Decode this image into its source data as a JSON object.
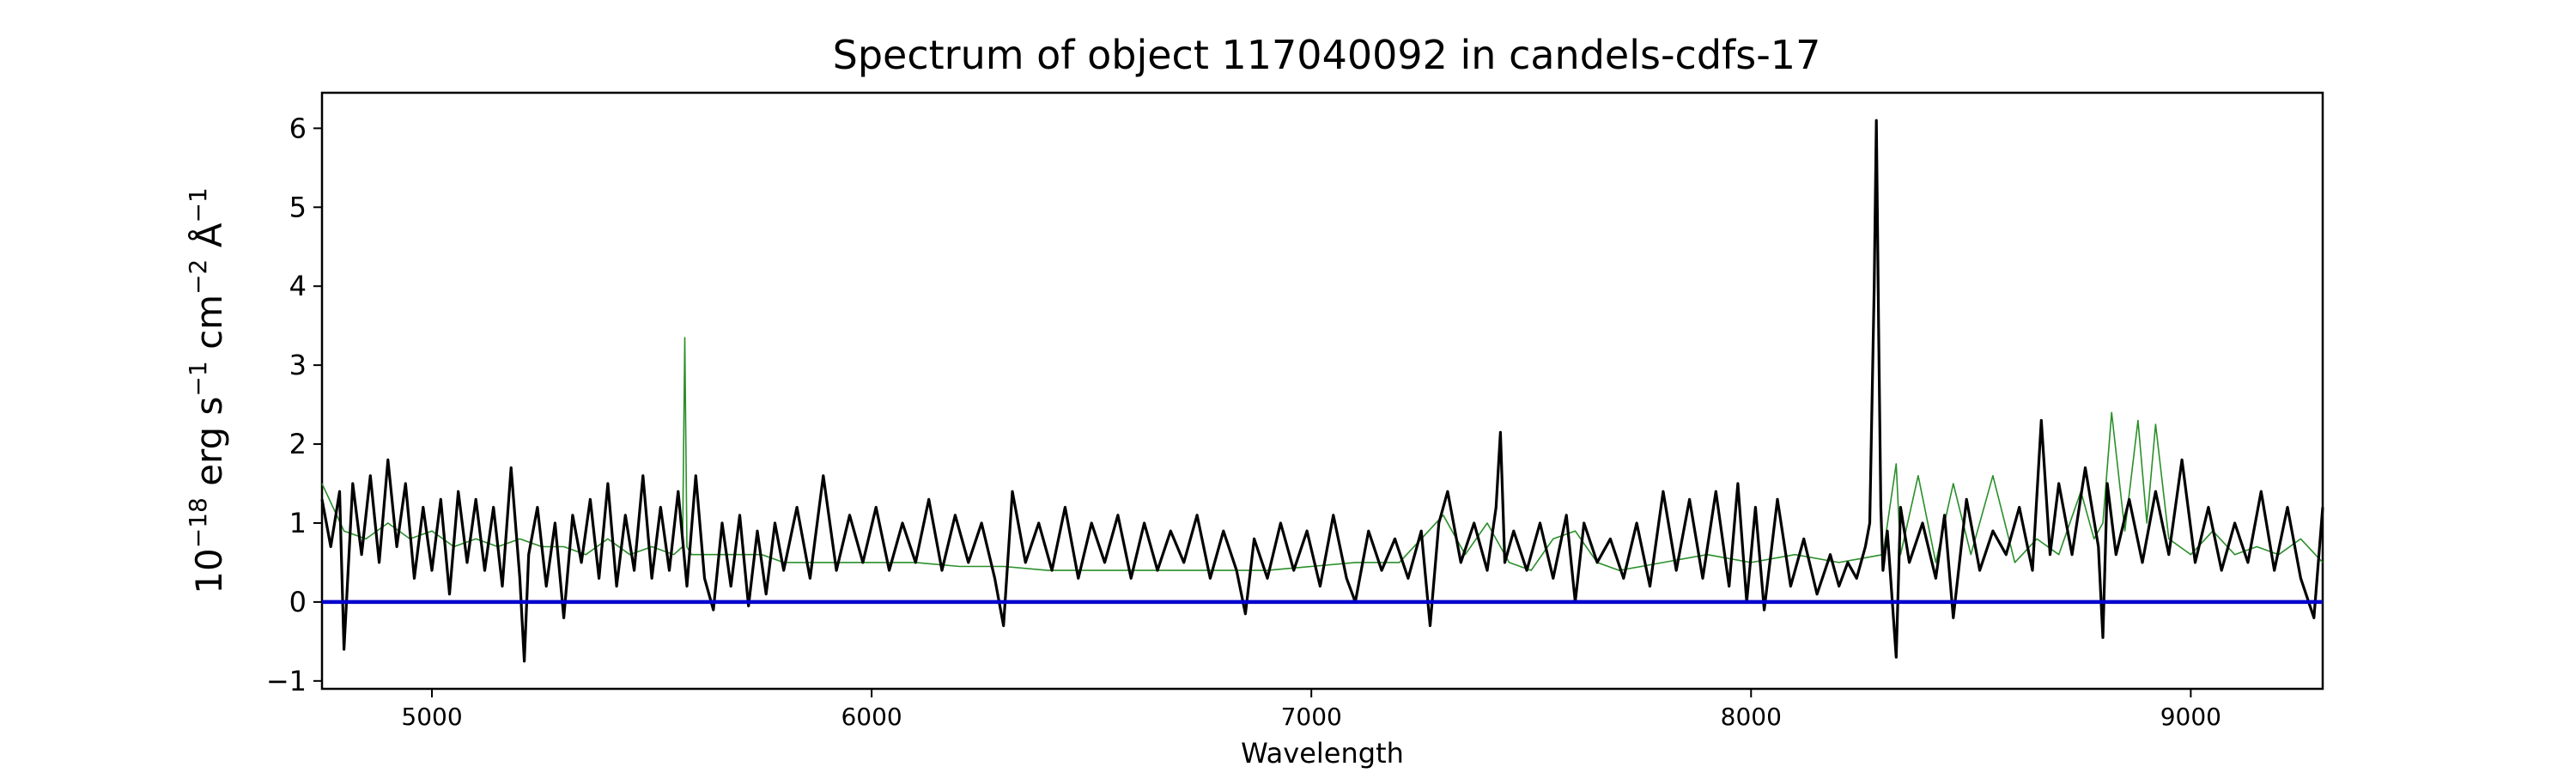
{
  "chart_data": {
    "type": "line",
    "title": "Spectrum of object 117040092 in candels-cdfs-17",
    "xlabel": "Wavelength",
    "ylabel": {
      "base": "10",
      "base_exp": "−18",
      "erg": " erg s",
      "s_exp": "−1",
      "cm": " cm",
      "cm_exp": "−2",
      "ang": " Å",
      "ang_exp": "−1"
    },
    "xlim": [
      4750,
      9300
    ],
    "ylim": [
      -1.1,
      6.45
    ],
    "xticks": [
      5000,
      6000,
      7000,
      8000,
      9000
    ],
    "yticks": [
      -1,
      0,
      1,
      2,
      3,
      4,
      5,
      6
    ],
    "ytick_labels": [
      "−1",
      "0",
      "1",
      "2",
      "3",
      "4",
      "5",
      "6"
    ],
    "grid": false,
    "colors": {
      "flux": "#000000",
      "error": "#2a8f2a",
      "zero": "#0000cc"
    },
    "series": [
      {
        "role": "flux",
        "x": [
          4750,
          4770,
          4790,
          4800,
          4820,
          4840,
          4860,
          4880,
          4900,
          4920,
          4940,
          4960,
          4980,
          5000,
          5020,
          5040,
          5060,
          5080,
          5100,
          5120,
          5140,
          5160,
          5180,
          5200,
          5210,
          5220,
          5240,
          5260,
          5280,
          5300,
          5320,
          5340,
          5360,
          5380,
          5400,
          5420,
          5440,
          5460,
          5480,
          5500,
          5520,
          5540,
          5560,
          5580,
          5600,
          5620,
          5640,
          5660,
          5680,
          5700,
          5720,
          5740,
          5760,
          5780,
          5800,
          5830,
          5860,
          5890,
          5920,
          5950,
          5980,
          6010,
          6040,
          6070,
          6100,
          6130,
          6160,
          6190,
          6220,
          6250,
          6280,
          6300,
          6320,
          6350,
          6380,
          6410,
          6440,
          6470,
          6500,
          6530,
          6560,
          6590,
          6620,
          6650,
          6680,
          6710,
          6740,
          6770,
          6800,
          6830,
          6850,
          6870,
          6900,
          6930,
          6960,
          6990,
          7020,
          7050,
          7080,
          7100,
          7130,
          7160,
          7190,
          7220,
          7250,
          7270,
          7290,
          7310,
          7340,
          7370,
          7400,
          7420,
          7430,
          7440,
          7460,
          7490,
          7520,
          7550,
          7580,
          7600,
          7620,
          7650,
          7680,
          7710,
          7740,
          7770,
          7800,
          7830,
          7860,
          7890,
          7920,
          7950,
          7970,
          7990,
          8010,
          8030,
          8060,
          8090,
          8120,
          8150,
          8180,
          8200,
          8220,
          8240,
          8260,
          8270,
          8280,
          8285,
          8290,
          8295,
          8300,
          8310,
          8330,
          8340,
          8360,
          8390,
          8420,
          8440,
          8460,
          8490,
          8520,
          8550,
          8580,
          8610,
          8640,
          8660,
          8680,
          8700,
          8730,
          8760,
          8790,
          8800,
          8810,
          8830,
          8860,
          8890,
          8920,
          8950,
          8980,
          9010,
          9040,
          9070,
          9100,
          9130,
          9160,
          9190,
          9220,
          9250,
          9280,
          9300
        ],
        "y": [
          1.3,
          0.7,
          1.4,
          -0.6,
          1.5,
          0.6,
          1.6,
          0.5,
          1.8,
          0.7,
          1.5,
          0.3,
          1.2,
          0.4,
          1.3,
          0.1,
          1.4,
          0.5,
          1.3,
          0.4,
          1.2,
          0.2,
          1.7,
          0.3,
          -0.75,
          0.6,
          1.2,
          0.2,
          1.0,
          -0.2,
          1.1,
          0.5,
          1.3,
          0.3,
          1.5,
          0.2,
          1.1,
          0.4,
          1.6,
          0.3,
          1.2,
          0.4,
          1.4,
          0.2,
          1.6,
          0.3,
          -0.1,
          1.0,
          0.2,
          1.1,
          -0.05,
          0.9,
          0.1,
          1.0,
          0.4,
          1.2,
          0.3,
          1.6,
          0.4,
          1.1,
          0.5,
          1.2,
          0.4,
          1.0,
          0.5,
          1.3,
          0.4,
          1.1,
          0.5,
          1.0,
          0.3,
          -0.3,
          1.4,
          0.5,
          1.0,
          0.4,
          1.2,
          0.3,
          1.0,
          0.5,
          1.1,
          0.3,
          1.0,
          0.4,
          0.9,
          0.5,
          1.1,
          0.3,
          0.9,
          0.4,
          -0.15,
          0.8,
          0.3,
          1.0,
          0.4,
          0.9,
          0.2,
          1.1,
          0.3,
          0.0,
          0.9,
          0.4,
          0.8,
          0.3,
          0.9,
          -0.3,
          1.0,
          1.4,
          0.5,
          1.0,
          0.4,
          1.2,
          2.15,
          0.5,
          0.9,
          0.4,
          1.0,
          0.3,
          1.1,
          0.0,
          1.0,
          0.5,
          0.8,
          0.3,
          1.0,
          0.2,
          1.4,
          0.4,
          1.3,
          0.3,
          1.4,
          0.2,
          1.5,
          0.0,
          1.2,
          -0.1,
          1.3,
          0.2,
          0.8,
          0.1,
          0.6,
          0.2,
          0.5,
          0.3,
          0.7,
          1.0,
          4.0,
          6.1,
          3.5,
          1.2,
          0.4,
          0.9,
          -0.7,
          1.2,
          0.5,
          1.0,
          0.3,
          1.1,
          -0.2,
          1.3,
          0.4,
          0.9,
          0.6,
          1.2,
          0.4,
          2.3,
          0.6,
          1.5,
          0.6,
          1.7,
          0.7,
          -0.45,
          1.5,
          0.6,
          1.3,
          0.5,
          1.4,
          0.6,
          1.8,
          0.5,
          1.2,
          0.4,
          1.0,
          0.5,
          1.4,
          0.4,
          1.2,
          0.3,
          -0.2,
          1.2
        ]
      },
      {
        "role": "error",
        "x": [
          4750,
          4800,
          4850,
          4900,
          4950,
          5000,
          5050,
          5100,
          5150,
          5200,
          5250,
          5300,
          5350,
          5400,
          5450,
          5500,
          5550,
          5570,
          5575,
          5580,
          5590,
          5650,
          5700,
          5750,
          5800,
          5900,
          6000,
          6100,
          6200,
          6300,
          6400,
          6500,
          6600,
          6700,
          6800,
          6900,
          7000,
          7100,
          7200,
          7250,
          7300,
          7350,
          7400,
          7450,
          7500,
          7550,
          7600,
          7650,
          7700,
          7800,
          7900,
          8000,
          8100,
          8200,
          8300,
          8330,
          8340,
          8380,
          8420,
          8460,
          8500,
          8550,
          8600,
          8650,
          8700,
          8750,
          8780,
          8800,
          8820,
          8850,
          8880,
          8900,
          8920,
          8950,
          9000,
          9050,
          9100,
          9150,
          9200,
          9250,
          9300
        ],
        "y": [
          1.5,
          0.9,
          0.8,
          1.0,
          0.8,
          0.9,
          0.7,
          0.8,
          0.7,
          0.8,
          0.7,
          0.7,
          0.6,
          0.8,
          0.6,
          0.7,
          0.6,
          0.7,
          3.35,
          0.7,
          0.6,
          0.6,
          0.6,
          0.6,
          0.5,
          0.5,
          0.5,
          0.5,
          0.45,
          0.45,
          0.4,
          0.4,
          0.4,
          0.4,
          0.4,
          0.4,
          0.45,
          0.5,
          0.5,
          0.8,
          1.1,
          0.6,
          1.0,
          0.5,
          0.4,
          0.8,
          0.9,
          0.5,
          0.4,
          0.5,
          0.6,
          0.5,
          0.6,
          0.5,
          0.6,
          1.75,
          0.6,
          1.6,
          0.5,
          1.5,
          0.6,
          1.6,
          0.5,
          0.8,
          0.6,
          1.4,
          0.8,
          1.0,
          2.4,
          0.9,
          2.3,
          1.0,
          2.25,
          0.8,
          0.6,
          0.9,
          0.6,
          0.7,
          0.6,
          0.8,
          0.5
        ]
      }
    ],
    "zero_line": 0
  }
}
